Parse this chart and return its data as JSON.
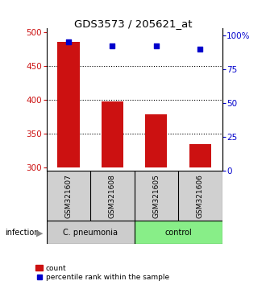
{
  "title": "GDS3573 / 205621_at",
  "samples": [
    "GSM321607",
    "GSM321608",
    "GSM321605",
    "GSM321606"
  ],
  "counts": [
    485,
    398,
    378,
    335
  ],
  "percentiles": [
    95,
    92,
    92,
    90
  ],
  "bar_bottom": 300,
  "ylim_left": [
    295,
    505
  ],
  "ylim_right": [
    0,
    105
  ],
  "yticks_left": [
    300,
    350,
    400,
    450,
    500
  ],
  "yticks_right": [
    0,
    25,
    50,
    75,
    100
  ],
  "ytick_labels_right": [
    "0",
    "25",
    "50",
    "75",
    "100%"
  ],
  "grid_values": [
    350,
    400,
    450
  ],
  "bar_color": "#cc1111",
  "dot_color": "#0000cc",
  "groups": [
    {
      "label": "C. pneumonia",
      "color": "#cccccc"
    },
    {
      "label": "control",
      "color": "#88ee88"
    }
  ],
  "infection_label": "infection",
  "legend_count_label": "count",
  "legend_pct_label": "percentile rank within the sample",
  "left_axis_color": "#cc1111",
  "right_axis_color": "#0000cc",
  "bar_width": 0.5,
  "x_positions": [
    0,
    1,
    2,
    3
  ],
  "background_color": "#ffffff"
}
